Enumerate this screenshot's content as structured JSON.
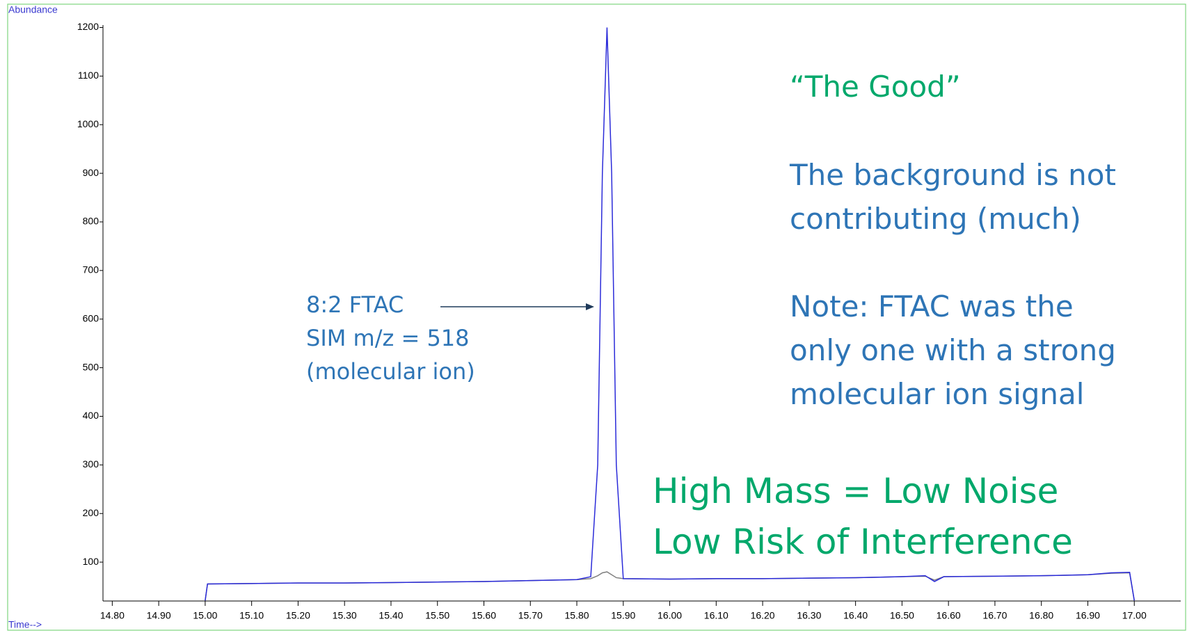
{
  "chart_data": {
    "type": "line",
    "y_axis_label": "Abundance",
    "x_axis_label": "Time-->",
    "x": [
      15.0,
      15.005,
      15.1,
      15.2,
      15.3,
      15.4,
      15.5,
      15.6,
      15.7,
      15.8,
      15.83,
      15.845,
      15.855,
      15.865,
      15.875,
      15.885,
      15.9,
      16.0,
      16.1,
      16.2,
      16.3,
      16.4,
      16.5,
      16.55,
      16.57,
      16.59,
      16.7,
      16.8,
      16.9,
      16.95,
      16.99,
      17.0
    ],
    "series": [
      {
        "color": "#808080",
        "values": [
          21,
          55,
          56,
          57,
          57,
          58,
          59,
          60,
          62,
          64,
          66,
          72,
          78,
          80,
          74,
          68,
          66,
          65,
          66,
          66,
          67,
          68,
          70,
          71,
          63,
          70,
          71,
          72,
          74,
          77,
          78,
          21
        ]
      },
      {
        "color": "#2b2bd9",
        "values": [
          21,
          55,
          56,
          57,
          57,
          58,
          59,
          60,
          62,
          64,
          70,
          300,
          900,
          1200,
          900,
          300,
          66,
          65,
          66,
          66,
          67,
          68,
          70,
          72,
          60,
          70,
          71,
          72,
          74,
          78,
          79,
          21
        ]
      }
    ],
    "xlim": [
      14.78,
      17.1
    ],
    "ylim": [
      20,
      1205
    ],
    "yticks": [
      100,
      200,
      300,
      400,
      500,
      600,
      700,
      800,
      900,
      1000,
      1100,
      1200
    ],
    "xticks": [
      {
        "value": 14.8,
        "label": "14.80"
      },
      {
        "value": 14.9,
        "label": "14.90"
      },
      {
        "value": 15.0,
        "label": "15.00"
      },
      {
        "value": 15.1,
        "label": "15.10"
      },
      {
        "value": 15.2,
        "label": "15.20"
      },
      {
        "value": 15.3,
        "label": "15.30"
      },
      {
        "value": 15.4,
        "label": "15.40"
      },
      {
        "value": 15.5,
        "label": "15.50"
      },
      {
        "value": 15.6,
        "label": "15.60"
      },
      {
        "value": 15.7,
        "label": "15.70"
      },
      {
        "value": 15.8,
        "label": "15.80"
      },
      {
        "value": 15.9,
        "label": "15.90"
      },
      {
        "value": 16.0,
        "label": "16.00"
      },
      {
        "value": 16.1,
        "label": "16.10"
      },
      {
        "value": 16.2,
        "label": "16.20"
      },
      {
        "value": 16.3,
        "label": "16.30"
      },
      {
        "value": 16.4,
        "label": "16.40"
      },
      {
        "value": 16.5,
        "label": "16.50"
      },
      {
        "value": 16.6,
        "label": "16.60"
      },
      {
        "value": 16.7,
        "label": "16.70"
      },
      {
        "value": 16.8,
        "label": "16.80"
      },
      {
        "value": 16.9,
        "label": "16.90"
      },
      {
        "value": 17.0,
        "label": "17.00"
      }
    ],
    "annotations": {
      "peak_label": [
        "8:2  FTAC",
        "SIM m/z = 518",
        "(molecular ion)"
      ],
      "heading": "“The Good”",
      "background_note": [
        "The background is not",
        "contributing (much)"
      ],
      "ion_note": [
        "Note:  FTAC was the",
        "only one with a strong",
        "molecular ion signal"
      ],
      "conclusion": [
        "High Mass = Low Noise",
        "Low Risk of Interference"
      ]
    }
  }
}
